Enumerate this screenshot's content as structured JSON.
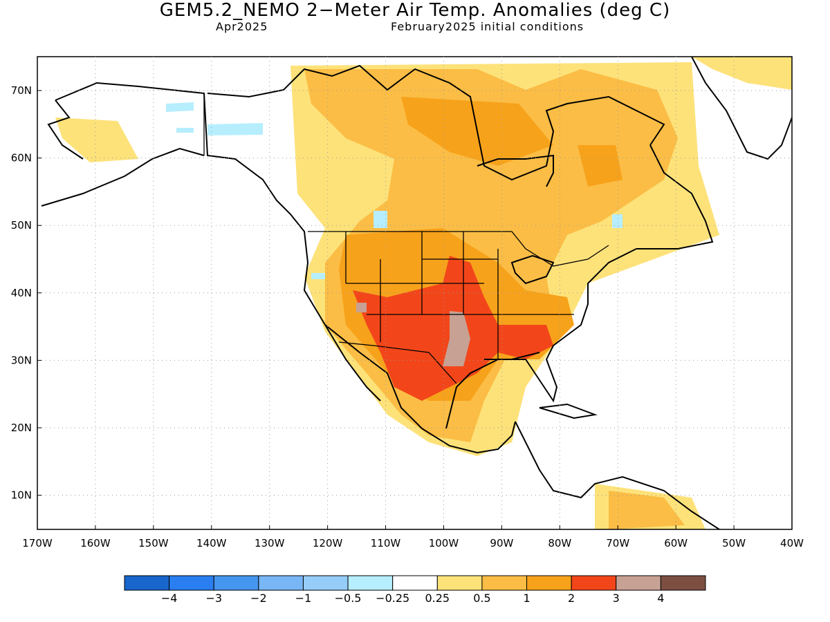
{
  "header": {
    "title": "GEM5.2_NEMO 2−Meter Air Temp. Anomalies (deg C)",
    "valid": "Apr2025",
    "init": "February2025 initial conditions"
  },
  "axes": {
    "lon_labels": [
      "170W",
      "160W",
      "150W",
      "140W",
      "130W",
      "120W",
      "110W",
      "100W",
      "90W",
      "80W",
      "70W",
      "60W",
      "50W",
      "40W"
    ],
    "lat_labels": [
      "70N",
      "60N",
      "50N",
      "40N",
      "30N",
      "20N",
      "10N"
    ]
  },
  "colorbar": {
    "labels": [
      "−4",
      "−3",
      "−2",
      "−1",
      "−0.5",
      "−0.25",
      "0.25",
      "0.5",
      "1",
      "2",
      "3",
      "4"
    ],
    "colors": [
      "#1866cc",
      "#2a7ff0",
      "#4596ee",
      "#78b6f5",
      "#96cdf8",
      "#b6eefe",
      "#ffffff",
      "#fde27a",
      "#fbbd45",
      "#f7a21b",
      "#f2461a",
      "#c7a193",
      "#7d4f43"
    ]
  }
}
